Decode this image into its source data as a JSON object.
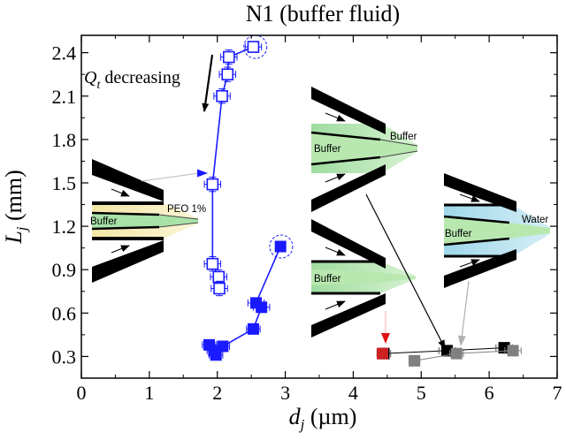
{
  "chart_data": {
    "type": "scatter",
    "title": "N1 (buffer fluid)",
    "xlabel_symbol": "d",
    "xlabel_sub": "j",
    "xlabel_unit": " (µm)",
    "ylabel_symbol": "L",
    "ylabel_sub": "j",
    "ylabel_unit": " (mm)",
    "xlim": [
      0,
      7
    ],
    "ylim": [
      0.15,
      2.52
    ],
    "xticks": [
      0,
      1,
      2,
      3,
      4,
      5,
      6,
      7
    ],
    "yticks": [
      0.3,
      0.6,
      0.9,
      1.2,
      1.5,
      1.8,
      2.1,
      2.4
    ],
    "ytick_labels": [
      "0.3",
      "0.6",
      "0.9",
      "1.2",
      "1.5",
      "1.8",
      "2.1",
      "2.4"
    ],
    "series": [
      {
        "marker": "open-square",
        "color": "#1a1aff",
        "connect": true,
        "points": [
          {
            "x": 2.53,
            "y": 2.44,
            "xerr": 0.12,
            "yerr": 0.03
          },
          {
            "x": 2.17,
            "y": 2.37,
            "xerr": 0.12,
            "yerr": 0.05
          },
          {
            "x": 2.15,
            "y": 2.25,
            "xerr": 0.12,
            "yerr": 0.05
          },
          {
            "x": 2.07,
            "y": 2.1,
            "xerr": 0.12,
            "yerr": 0.05
          },
          {
            "x": 1.93,
            "y": 1.49,
            "xerr": 0.12,
            "yerr": 0.05
          },
          {
            "x": 1.93,
            "y": 0.94,
            "xerr": 0.12,
            "yerr": 0.05
          },
          {
            "x": 2.02,
            "y": 0.85,
            "xerr": 0.12,
            "yerr": 0.05
          },
          {
            "x": 2.03,
            "y": 0.77,
            "xerr": 0.12,
            "yerr": 0.05
          }
        ]
      },
      {
        "marker": "filled-square",
        "color": "#1a1aff",
        "connect": true,
        "points": [
          {
            "x": 2.93,
            "y": 1.06,
            "xerr": 0.05,
            "yerr": 0.02
          },
          {
            "x": 2.57,
            "y": 0.67,
            "xerr": 0.12,
            "yerr": 0.03
          },
          {
            "x": 2.65,
            "y": 0.64,
            "xerr": 0.12,
            "yerr": 0.03
          },
          {
            "x": 2.53,
            "y": 0.49,
            "xerr": 0.1,
            "yerr": 0.03
          },
          {
            "x": 2.08,
            "y": 0.37,
            "xerr": 0.1,
            "yerr": 0.03
          },
          {
            "x": 1.88,
            "y": 0.38,
            "xerr": 0.1,
            "yerr": 0.03
          },
          {
            "x": 1.95,
            "y": 0.34,
            "xerr": 0.1,
            "yerr": 0.03
          },
          {
            "x": 1.98,
            "y": 0.31,
            "xerr": 0.1,
            "yerr": 0.03
          }
        ]
      },
      {
        "marker": "filled-square",
        "color": "#000000",
        "connect": false,
        "points": [
          {
            "x": 4.45,
            "y": 0.32,
            "xerr": 0.1,
            "yerr": 0.02
          },
          {
            "x": 5.38,
            "y": 0.34,
            "xerr": 0.12,
            "yerr": 0.02
          },
          {
            "x": 6.22,
            "y": 0.36,
            "xerr": 0.12,
            "yerr": 0.02
          }
        ]
      },
      {
        "marker": "filled-square",
        "color": "#808080",
        "connect": false,
        "points": [
          {
            "x": 4.9,
            "y": 0.27,
            "xerr": 0.08,
            "yerr": 0.02
          },
          {
            "x": 5.52,
            "y": 0.32,
            "xerr": 0.1,
            "yerr": 0.02
          },
          {
            "x": 6.35,
            "y": 0.34,
            "xerr": 0.12,
            "yerr": 0.02
          }
        ]
      },
      {
        "marker": "filled-square",
        "color": "#cc2222",
        "connect": false,
        "points": [
          {
            "x": 4.43,
            "y": 0.32,
            "xerr": 0.06,
            "yerr": 0.02
          }
        ]
      }
    ],
    "dashed_circles": [
      {
        "x": 2.56,
        "y": 2.44
      },
      {
        "x": 2.94,
        "y": 1.06
      }
    ],
    "annotations": {
      "qt_symbol": "Q",
      "qt_sub": "t",
      "qt_text": " decreasing"
    },
    "insets": [
      {
        "fluid_label": "Buffer",
        "outer_label": "PEO 1%"
      },
      {
        "fluid_label": "Buffer",
        "outer_label": "Buffer"
      },
      {
        "fluid_label": "Buffer",
        "outer_label": ""
      },
      {
        "fluid_label": "Buffer",
        "outer_label": "Water"
      }
    ],
    "grid": false,
    "legend": "none"
  }
}
